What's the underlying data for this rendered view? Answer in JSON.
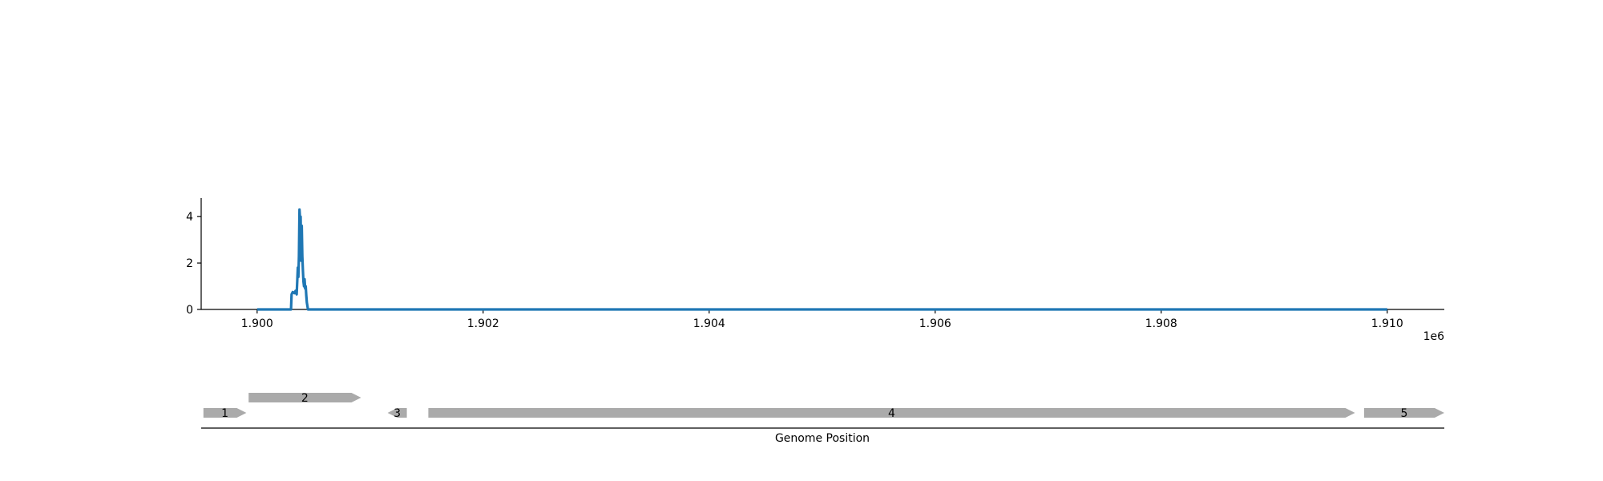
{
  "chart_data": {
    "type": "line",
    "title": "",
    "xlabel": "Genome Position",
    "ylabel": "",
    "x_offset_label": "1e6",
    "xlim": [
      1899505,
      1910505
    ],
    "ylim": [
      0,
      4.8
    ],
    "x_ticks": [
      1900000,
      1902000,
      1904000,
      1906000,
      1908000,
      1910000
    ],
    "x_tick_labels": [
      "1.900",
      "1.902",
      "1.904",
      "1.906",
      "1.908",
      "1.910"
    ],
    "y_ticks": [
      0,
      2,
      4
    ],
    "y_tick_labels": [
      "0",
      "2",
      "4"
    ],
    "grid": false,
    "series": [
      {
        "color": "#1f77b4",
        "x": [
          1900000,
          1900300,
          1900305,
          1900315,
          1900330,
          1900340,
          1900350,
          1900355,
          1900360,
          1900365,
          1900370,
          1900375,
          1900380,
          1900385,
          1900390,
          1900395,
          1900400,
          1900405,
          1900410,
          1900415,
          1900420,
          1900425,
          1900430,
          1900435,
          1900440,
          1900450,
          1910000
        ],
        "y": [
          0,
          0,
          0.65,
          0.75,
          0.7,
          0.8,
          0.65,
          1.2,
          1.8,
          1.4,
          2.3,
          4.3,
          3.9,
          4.0,
          2.1,
          3.6,
          2.3,
          1.7,
          1.2,
          1.0,
          1.3,
          0.9,
          1.0,
          0.6,
          0.3,
          0,
          0
        ]
      }
    ]
  },
  "gene_track": {
    "color": "#aaaaaa",
    "genes": [
      {
        "label": "1",
        "start": 1899525,
        "end": 1899905,
        "strand": "+",
        "row": 0
      },
      {
        "label": "2",
        "start": 1899925,
        "end": 1900920,
        "strand": "+",
        "row": 1
      },
      {
        "label": "3",
        "start": 1901155,
        "end": 1901325,
        "strand": "-",
        "row": 0
      },
      {
        "label": "4",
        "start": 1901515,
        "end": 1909715,
        "strand": "+",
        "row": 0
      },
      {
        "label": "5",
        "start": 1909795,
        "end": 1910505,
        "strand": "+",
        "row": 0
      }
    ]
  }
}
